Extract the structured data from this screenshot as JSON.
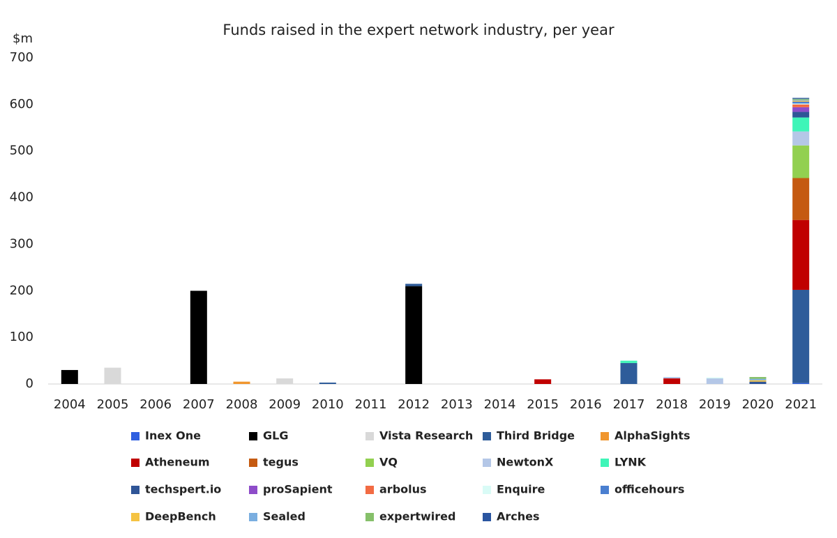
{
  "chart_data": {
    "type": "stacked_bar",
    "title": "Funds raised in the expert network industry, per year",
    "y_label": "$m",
    "categories": [
      "2004",
      "2005",
      "2006",
      "2007",
      "2008",
      "2009",
      "2010",
      "2011",
      "2012",
      "2013",
      "2014",
      "2015",
      "2016",
      "2017",
      "2018",
      "2019",
      "2020",
      "2021"
    ],
    "ylim": [
      0,
      700
    ],
    "yticks": [
      0,
      100,
      200,
      300,
      400,
      500,
      600,
      700
    ],
    "grid": false,
    "series": [
      {
        "name": "Inex One",
        "color": "#2f5fe0",
        "values": [
          0,
          0,
          0,
          0,
          0,
          0,
          0,
          0,
          0,
          0,
          0,
          0,
          0,
          0,
          0,
          0,
          0,
          2
        ]
      },
      {
        "name": "GLG",
        "color": "#000000",
        "values": [
          30,
          0,
          0,
          200,
          0,
          0,
          0,
          0,
          210,
          0,
          0,
          0,
          0,
          0,
          0,
          0,
          0,
          0
        ]
      },
      {
        "name": "Vista Research",
        "color": "#d9d9d9",
        "values": [
          0,
          35,
          0,
          0,
          0,
          12,
          0,
          0,
          0,
          0,
          0,
          0,
          0,
          0,
          0,
          0,
          0,
          0
        ]
      },
      {
        "name": "Third Bridge",
        "color": "#2e5c9a",
        "values": [
          0,
          0,
          0,
          0,
          0,
          0,
          3,
          0,
          5,
          0,
          0,
          0,
          0,
          45,
          0,
          0,
          0,
          200
        ]
      },
      {
        "name": "AlphaSights",
        "color": "#f0962e",
        "values": [
          0,
          0,
          0,
          0,
          5,
          0,
          0,
          0,
          0,
          0,
          0,
          0,
          0,
          0,
          0,
          0,
          0,
          0
        ]
      },
      {
        "name": "Atheneum",
        "color": "#c00000",
        "values": [
          0,
          0,
          0,
          0,
          0,
          0,
          0,
          0,
          0,
          0,
          0,
          10,
          0,
          0,
          12,
          0,
          0,
          150
        ]
      },
      {
        "name": "tegus",
        "color": "#c55a11",
        "values": [
          0,
          0,
          0,
          0,
          0,
          0,
          0,
          0,
          0,
          0,
          0,
          0,
          0,
          0,
          0,
          0,
          0,
          90
        ]
      },
      {
        "name": "VQ",
        "color": "#92d050",
        "values": [
          0,
          0,
          0,
          0,
          0,
          0,
          0,
          0,
          0,
          0,
          0,
          0,
          0,
          0,
          0,
          0,
          0,
          70
        ]
      },
      {
        "name": "NewtonX",
        "color": "#b4c7e7",
        "values": [
          0,
          0,
          0,
          0,
          0,
          0,
          0,
          0,
          0,
          0,
          0,
          0,
          0,
          0,
          3,
          12,
          0,
          30
        ]
      },
      {
        "name": "LYNK",
        "color": "#3ff5b8",
        "values": [
          0,
          0,
          0,
          0,
          0,
          0,
          0,
          0,
          0,
          0,
          0,
          0,
          0,
          5,
          0,
          0,
          0,
          30
        ]
      },
      {
        "name": "techspert.io",
        "color": "#2f5597",
        "values": [
          0,
          0,
          0,
          0,
          0,
          0,
          0,
          0,
          0,
          0,
          0,
          0,
          0,
          0,
          0,
          0,
          5,
          12
        ]
      },
      {
        "name": "proSapient",
        "color": "#8e4cc9",
        "values": [
          0,
          0,
          0,
          0,
          0,
          0,
          0,
          0,
          0,
          0,
          0,
          0,
          0,
          0,
          0,
          0,
          0,
          10
        ]
      },
      {
        "name": "arbolus",
        "color": "#f26b43",
        "values": [
          0,
          0,
          0,
          0,
          0,
          0,
          0,
          0,
          0,
          0,
          0,
          0,
          0,
          0,
          0,
          0,
          0,
          6
        ]
      },
      {
        "name": "Enquire",
        "color": "#d9fbf6",
        "values": [
          0,
          0,
          0,
          0,
          0,
          0,
          0,
          0,
          0,
          0,
          0,
          0,
          0,
          0,
          0,
          2,
          0,
          2
        ]
      },
      {
        "name": "officehours",
        "color": "#4a7fd0",
        "values": [
          0,
          0,
          0,
          0,
          0,
          0,
          0,
          0,
          0,
          0,
          0,
          0,
          0,
          0,
          0,
          0,
          0,
          4
        ]
      },
      {
        "name": "DeepBench",
        "color": "#f5c342",
        "values": [
          0,
          0,
          0,
          0,
          0,
          0,
          0,
          0,
          0,
          0,
          0,
          0,
          0,
          0,
          0,
          0,
          3,
          2
        ]
      },
      {
        "name": "Sealed",
        "color": "#7aaee0",
        "values": [
          0,
          0,
          0,
          0,
          0,
          0,
          0,
          0,
          0,
          0,
          0,
          0,
          0,
          0,
          0,
          0,
          3,
          2
        ]
      },
      {
        "name": "expertwired",
        "color": "#86c06a",
        "values": [
          0,
          0,
          0,
          0,
          0,
          0,
          0,
          0,
          0,
          0,
          0,
          0,
          0,
          0,
          0,
          0,
          4,
          2
        ]
      },
      {
        "name": "Arches",
        "color": "#2a55a0",
        "values": [
          0,
          0,
          0,
          0,
          0,
          0,
          0,
          0,
          0,
          0,
          0,
          0,
          0,
          0,
          0,
          0,
          0,
          2
        ]
      }
    ]
  }
}
